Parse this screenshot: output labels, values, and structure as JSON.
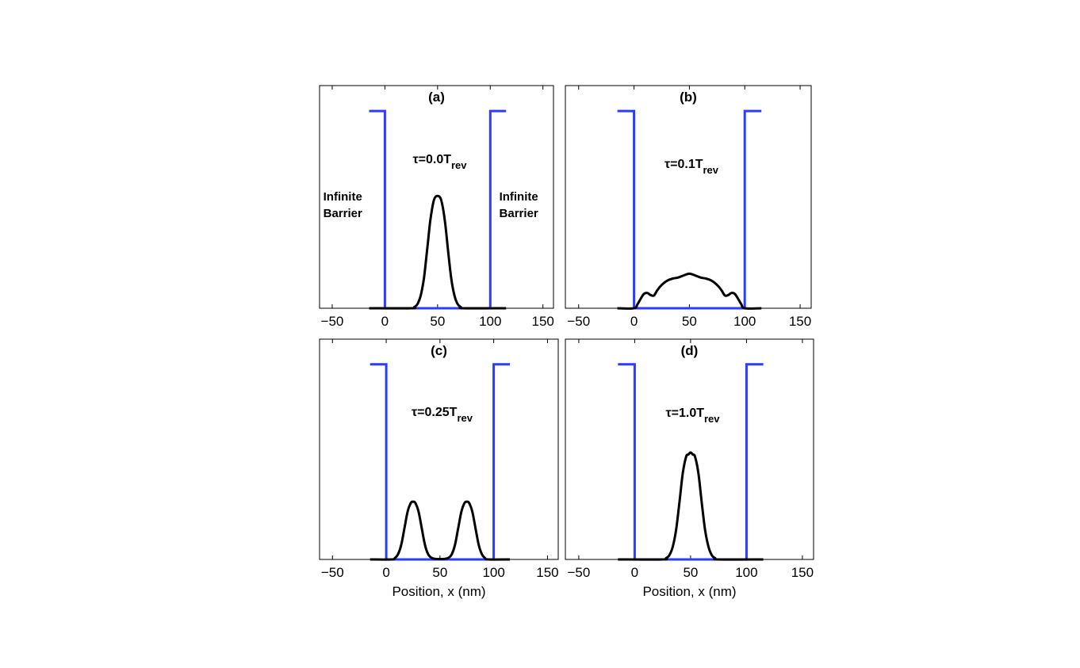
{
  "chart_data": [
    {
      "type": "line",
      "panel_label": "(a)",
      "tau_label": {
        "prefix": "τ=0.0T",
        "subscript": "rev"
      },
      "annotations": [
        {
          "lines": [
            "Infinite",
            "Barrier"
          ],
          "side": "left"
        },
        {
          "lines": [
            "Infinite",
            "Barrier"
          ],
          "side": "right"
        }
      ],
      "xlim": [
        -62,
        160
      ],
      "xticks": [
        -50,
        0,
        50,
        100,
        150
      ],
      "xlabel": "",
      "barrier": {
        "x": [
          -15,
          0,
          0,
          100,
          100,
          115
        ],
        "y": [
          0.93,
          0.93,
          0,
          0,
          0.93,
          0.93
        ],
        "color": "#2b3bff"
      },
      "density": {
        "x": [
          -15,
          25,
          28,
          31,
          34,
          37,
          40,
          43,
          46,
          48,
          50,
          52,
          54,
          57,
          60,
          63,
          66,
          69,
          72,
          75,
          115
        ],
        "y": [
          0,
          0,
          0.006,
          0.02,
          0.06,
          0.14,
          0.27,
          0.41,
          0.5,
          0.525,
          0.53,
          0.525,
          0.5,
          0.41,
          0.27,
          0.14,
          0.06,
          0.02,
          0.006,
          0,
          0
        ]
      }
    },
    {
      "type": "line",
      "panel_label": "(b)",
      "tau_label": {
        "prefix": "τ=0.1T",
        "subscript": "rev"
      },
      "annotations": [],
      "xlim": [
        -62,
        160
      ],
      "xticks": [
        -50,
        0,
        50,
        100,
        150
      ],
      "xlabel": "",
      "barrier": {
        "x": [
          -15,
          0,
          0,
          100,
          100,
          115
        ],
        "y": [
          0.93,
          0.93,
          0,
          0,
          0.93,
          0.93
        ],
        "color": "#2b3bff"
      },
      "density": {
        "x": [
          -15,
          0,
          3,
          6,
          9,
          12,
          15,
          18,
          21,
          25,
          30,
          35,
          40,
          45,
          50,
          55,
          60,
          65,
          70,
          75,
          79,
          82,
          85,
          88,
          91,
          94,
          97,
          100,
          115
        ],
        "y": [
          0,
          0,
          0.018,
          0.045,
          0.068,
          0.072,
          0.062,
          0.06,
          0.085,
          0.11,
          0.13,
          0.14,
          0.145,
          0.155,
          0.163,
          0.155,
          0.145,
          0.14,
          0.13,
          0.11,
          0.085,
          0.06,
          0.062,
          0.072,
          0.068,
          0.045,
          0.018,
          0,
          0
        ]
      }
    },
    {
      "type": "line",
      "panel_label": "(c)",
      "tau_label": {
        "prefix": "τ=0.25T",
        "subscript": "rev"
      },
      "annotations": [],
      "xlim": [
        -62,
        160
      ],
      "xticks": [
        -50,
        0,
        50,
        100,
        150
      ],
      "xlabel": "Position, x (nm)",
      "barrier": {
        "x": [
          -15,
          0,
          0,
          100,
          100,
          115
        ],
        "y": [
          0.93,
          0.93,
          0,
          0,
          0.93,
          0.93
        ],
        "color": "#2b3bff"
      },
      "density": {
        "x": [
          -15,
          5,
          8,
          11,
          14,
          17,
          20,
          23,
          25,
          27,
          30,
          33,
          36,
          39,
          42,
          45,
          48,
          50,
          52,
          55,
          58,
          61,
          64,
          67,
          70,
          73,
          75,
          77,
          80,
          83,
          86,
          89,
          92,
          95,
          115
        ],
        "y": [
          0,
          0,
          0.006,
          0.025,
          0.07,
          0.15,
          0.23,
          0.27,
          0.275,
          0.27,
          0.23,
          0.15,
          0.07,
          0.025,
          0.008,
          0.003,
          0.002,
          0.002,
          0.002,
          0.003,
          0.008,
          0.025,
          0.07,
          0.15,
          0.23,
          0.27,
          0.275,
          0.27,
          0.23,
          0.15,
          0.07,
          0.025,
          0.006,
          0,
          0
        ]
      }
    },
    {
      "type": "line",
      "panel_label": "(d)",
      "tau_label": {
        "prefix": "τ=1.0T",
        "subscript": "rev"
      },
      "annotations": [],
      "xlim": [
        -62,
        160
      ],
      "xticks": [
        -50,
        0,
        50,
        100,
        150
      ],
      "xlabel": "Position, x (nm)",
      "barrier": {
        "x": [
          -15,
          0,
          0,
          100,
          100,
          115
        ],
        "y": [
          0.93,
          0.93,
          0,
          0,
          0.93,
          0.93
        ],
        "color": "#2b3bff"
      },
      "density": {
        "x": [
          -15,
          25,
          28,
          31,
          34,
          37,
          40,
          43,
          46,
          48,
          50,
          52,
          54,
          57,
          60,
          63,
          66,
          69,
          72,
          75,
          115
        ],
        "y": [
          0,
          0,
          0.006,
          0.02,
          0.06,
          0.14,
          0.27,
          0.41,
          0.49,
          0.5,
          0.51,
          0.5,
          0.49,
          0.41,
          0.27,
          0.14,
          0.06,
          0.02,
          0.006,
          0,
          0
        ]
      }
    }
  ]
}
